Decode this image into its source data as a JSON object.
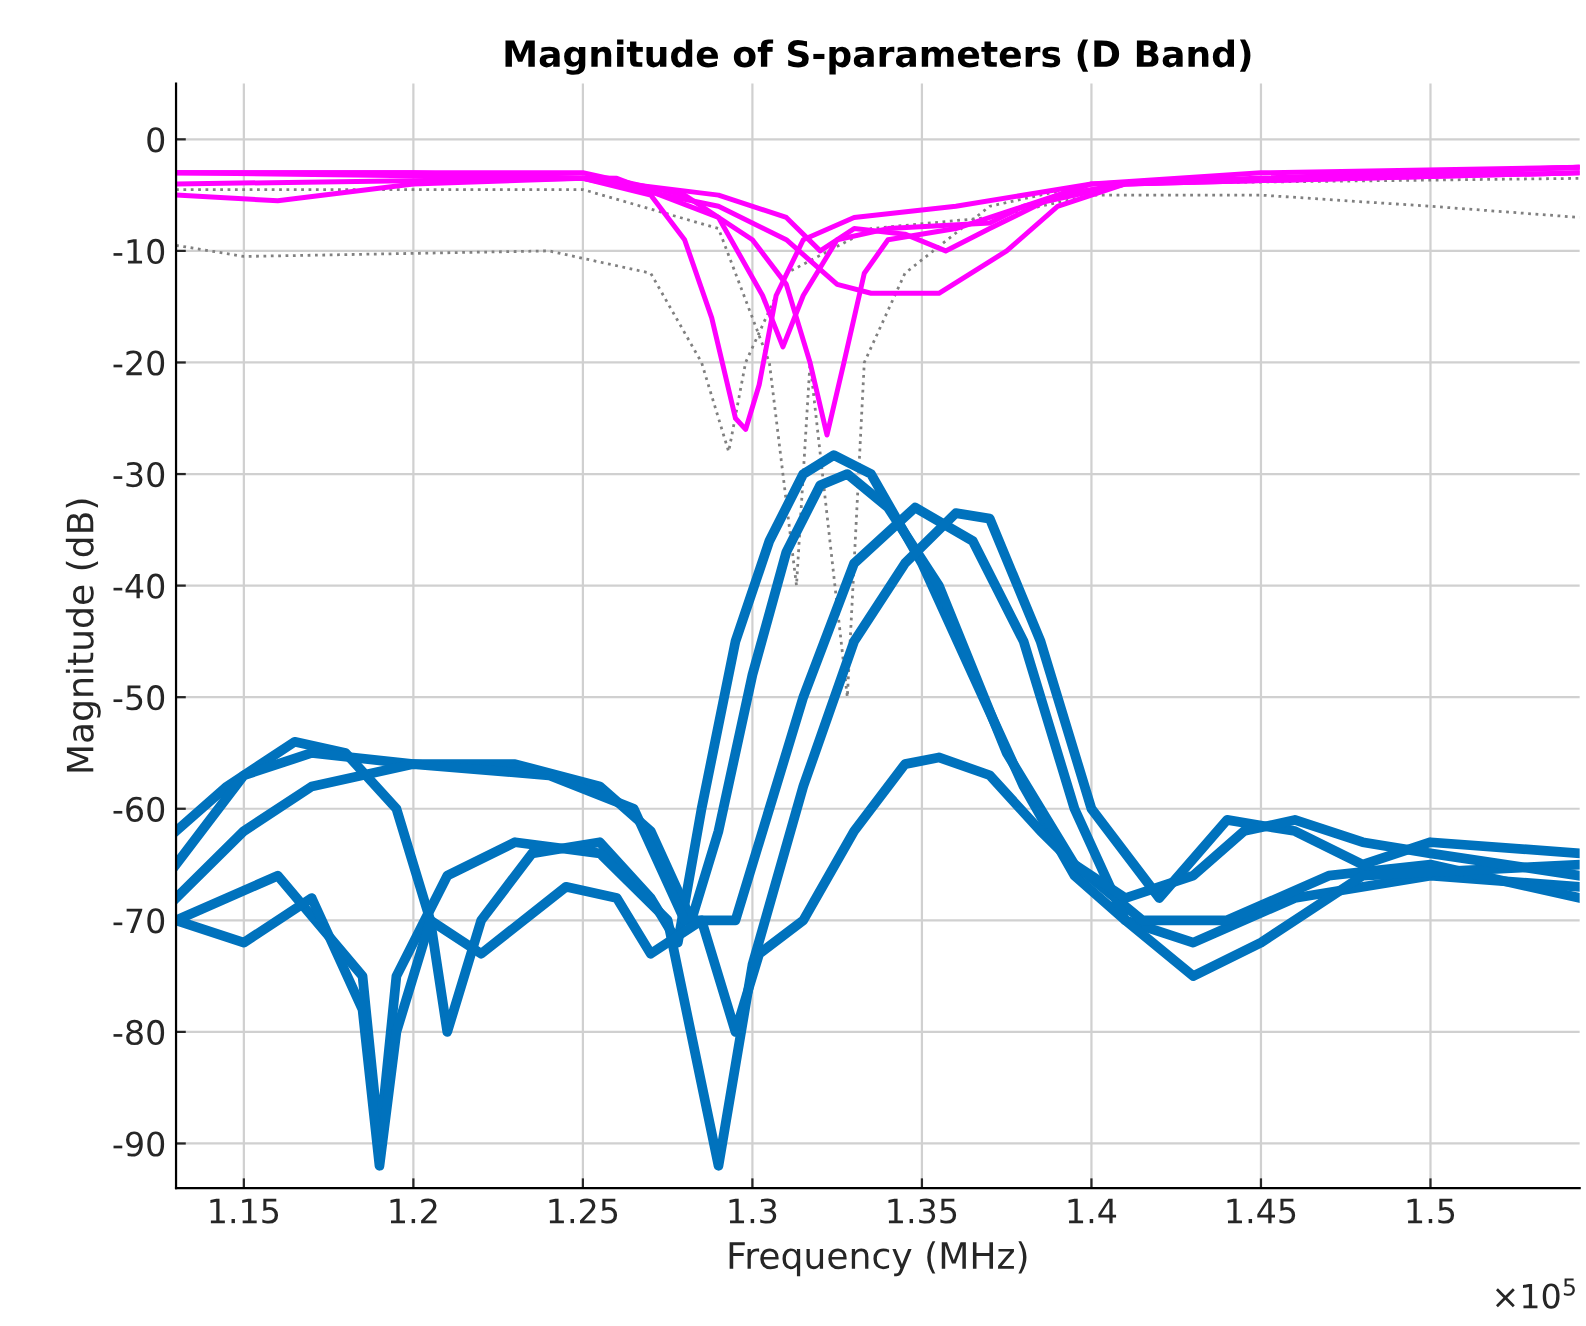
{
  "chart_data": {
    "type": "line",
    "title": "Magnitude of S-parameters (D Band)",
    "xlabel": "Frequency (MHz)",
    "ylabel": "Magnitude (dB)",
    "annotations": [
      "×10$^{5}$"
    ],
    "xlim": [
      1.13,
      1.544
    ],
    "ylim": [
      -94,
      5
    ],
    "xticks": [
      1.15,
      1.2,
      1.25,
      1.3,
      1.35,
      1.4,
      1.45,
      1.5
    ],
    "yticks": [
      -90,
      -80,
      -70,
      -60,
      -50,
      -40,
      -30,
      -20,
      -10,
      0
    ],
    "grid": true,
    "marker": "none",
    "series": [
      {
        "color": "#808080",
        "line_style": "dotted",
        "x": [
          1.13,
          1.15,
          1.24,
          1.27,
          1.285,
          1.293,
          1.298,
          1.31,
          1.335,
          1.37,
          1.4,
          1.45,
          1.5,
          1.544
        ],
        "values": [
          -9.5,
          -10.5,
          -10,
          -12,
          -20,
          -28,
          -20,
          -12,
          -8,
          -7,
          -5,
          -5,
          -6,
          -7
        ]
      },
      {
        "color": "#808080",
        "line_style": "dotted",
        "x": [
          1.13,
          1.25,
          1.29,
          1.305,
          1.313,
          1.317,
          1.328,
          1.333,
          1.345,
          1.37,
          1.4,
          1.544
        ],
        "values": [
          -4.5,
          -4.5,
          -8,
          -20,
          -40,
          -20,
          -50,
          -20,
          -12,
          -6,
          -4,
          -3.5
        ]
      },
      {
        "color": "#ff00ff",
        "line_style": "solid",
        "x": [
          1.13,
          1.2,
          1.25,
          1.27,
          1.28,
          1.288,
          1.295,
          1.298,
          1.302,
          1.307,
          1.315,
          1.33,
          1.36,
          1.4,
          1.45,
          1.544
        ],
        "values": [
          -3,
          -3,
          -3.5,
          -5,
          -9,
          -16,
          -25,
          -26,
          -22,
          -14,
          -9,
          -7,
          -6,
          -4,
          -3,
          -2.5
        ]
      },
      {
        "color": "#ff00ff",
        "line_style": "solid",
        "x": [
          1.13,
          1.25,
          1.28,
          1.3,
          1.31,
          1.317,
          1.322,
          1.327,
          1.333,
          1.34,
          1.36,
          1.38,
          1.4,
          1.544
        ],
        "values": [
          -3,
          -3,
          -5,
          -9,
          -13,
          -20,
          -26.5,
          -20,
          -12,
          -9,
          -8,
          -6,
          -4,
          -2.5
        ]
      },
      {
        "color": "#ff00ff",
        "line_style": "solid",
        "x": [
          1.13,
          1.26,
          1.29,
          1.303,
          1.309,
          1.315,
          1.325,
          1.34,
          1.37,
          1.38,
          1.41,
          1.544
        ],
        "values": [
          -3,
          -3.5,
          -7,
          -14,
          -18.6,
          -14,
          -9,
          -8,
          -7.5,
          -6,
          -4,
          -3
        ]
      },
      {
        "color": "#ff00ff",
        "line_style": "solid",
        "x": [
          1.13,
          1.16,
          1.2,
          1.25,
          1.29,
          1.31,
          1.325,
          1.335,
          1.355,
          1.375,
          1.39,
          1.41,
          1.544
        ],
        "values": [
          -5,
          -5.5,
          -4,
          -3.5,
          -6,
          -9,
          -13,
          -13.8,
          -13.8,
          -10,
          -6,
          -4,
          -3
        ]
      },
      {
        "color": "#ff00ff",
        "line_style": "solid",
        "x": [
          1.13,
          1.25,
          1.29,
          1.31,
          1.32,
          1.33,
          1.345,
          1.357,
          1.37,
          1.39,
          1.41,
          1.544
        ],
        "values": [
          -4,
          -3.5,
          -5,
          -7,
          -10,
          -8,
          -8.5,
          -10,
          -8,
          -5,
          -4,
          -2.5
        ]
      },
      {
        "color": "#0072bd",
        "line_style": "solid",
        "x": [
          1.13,
          1.145,
          1.165,
          1.18,
          1.195,
          1.205,
          1.21,
          1.22,
          1.235,
          1.255,
          1.27,
          1.278,
          1.285,
          1.295,
          1.305,
          1.315,
          1.324,
          1.335,
          1.35,
          1.365,
          1.38,
          1.395,
          1.41,
          1.43,
          1.46,
          1.5,
          1.544
        ],
        "values": [
          -62,
          -58,
          -54,
          -55,
          -60,
          -70,
          -80,
          -70,
          -64,
          -63,
          -68,
          -72,
          -60,
          -45,
          -36,
          -30,
          -28.3,
          -30,
          -38,
          -48,
          -58,
          -66,
          -70,
          -72,
          -68,
          -66,
          -67
        ]
      },
      {
        "color": "#0072bd",
        "line_style": "solid",
        "x": [
          1.13,
          1.15,
          1.17,
          1.2,
          1.23,
          1.255,
          1.27,
          1.282,
          1.29,
          1.3,
          1.31,
          1.32,
          1.328,
          1.34,
          1.355,
          1.375,
          1.395,
          1.415,
          1.44,
          1.47,
          1.5,
          1.544
        ],
        "values": [
          -65,
          -57,
          -55,
          -56,
          -56,
          -58,
          -62,
          -70,
          -62,
          -48,
          -37,
          -31,
          -30,
          -33,
          -40,
          -55,
          -65,
          -70,
          -70,
          -66,
          -65,
          -68
        ]
      },
      {
        "color": "#0072bd",
        "line_style": "solid",
        "x": [
          1.13,
          1.15,
          1.17,
          1.2,
          1.24,
          1.265,
          1.28,
          1.295,
          1.305,
          1.315,
          1.33,
          1.348,
          1.365,
          1.38,
          1.395,
          1.41,
          1.43,
          1.45,
          1.48,
          1.544
        ],
        "values": [
          -68,
          -62,
          -58,
          -56,
          -57,
          -60,
          -70,
          -70,
          -60,
          -50,
          -38,
          -33,
          -36,
          -45,
          -60,
          -70,
          -75,
          -72,
          -66,
          -65
        ]
      },
      {
        "color": "#0072bd",
        "line_style": "solid",
        "x": [
          1.13,
          1.16,
          1.185,
          1.19,
          1.195,
          1.21,
          1.23,
          1.255,
          1.275,
          1.29,
          1.3,
          1.315,
          1.33,
          1.345,
          1.36,
          1.37,
          1.385,
          1.4,
          1.42,
          1.44,
          1.46,
          1.48,
          1.5,
          1.544
        ],
        "values": [
          -70,
          -66,
          -75,
          -90,
          -75,
          -66,
          -63,
          -64,
          -70,
          -92,
          -74,
          -58,
          -45,
          -38,
          -33.5,
          -34,
          -45,
          -60,
          -68,
          -61,
          -62,
          -65,
          -63,
          -64
        ]
      },
      {
        "color": "#0072bd",
        "line_style": "solid",
        "x": [
          1.13,
          1.15,
          1.17,
          1.185,
          1.19,
          1.195,
          1.205,
          1.22,
          1.245,
          1.26,
          1.27,
          1.285,
          1.295,
          1.302,
          1.315,
          1.33,
          1.345,
          1.355,
          1.37,
          1.385,
          1.395,
          1.41,
          1.43,
          1.445,
          1.46,
          1.48,
          1.5,
          1.544
        ],
        "values": [
          -70,
          -72,
          -68,
          -78,
          -92,
          -80,
          -70,
          -73,
          -67,
          -68,
          -73,
          -70,
          -80,
          -73,
          -70,
          -62,
          -56,
          -55.4,
          -57,
          -62,
          -65,
          -68,
          -66,
          -62,
          -61,
          -63,
          -64,
          -66
        ]
      }
    ]
  }
}
